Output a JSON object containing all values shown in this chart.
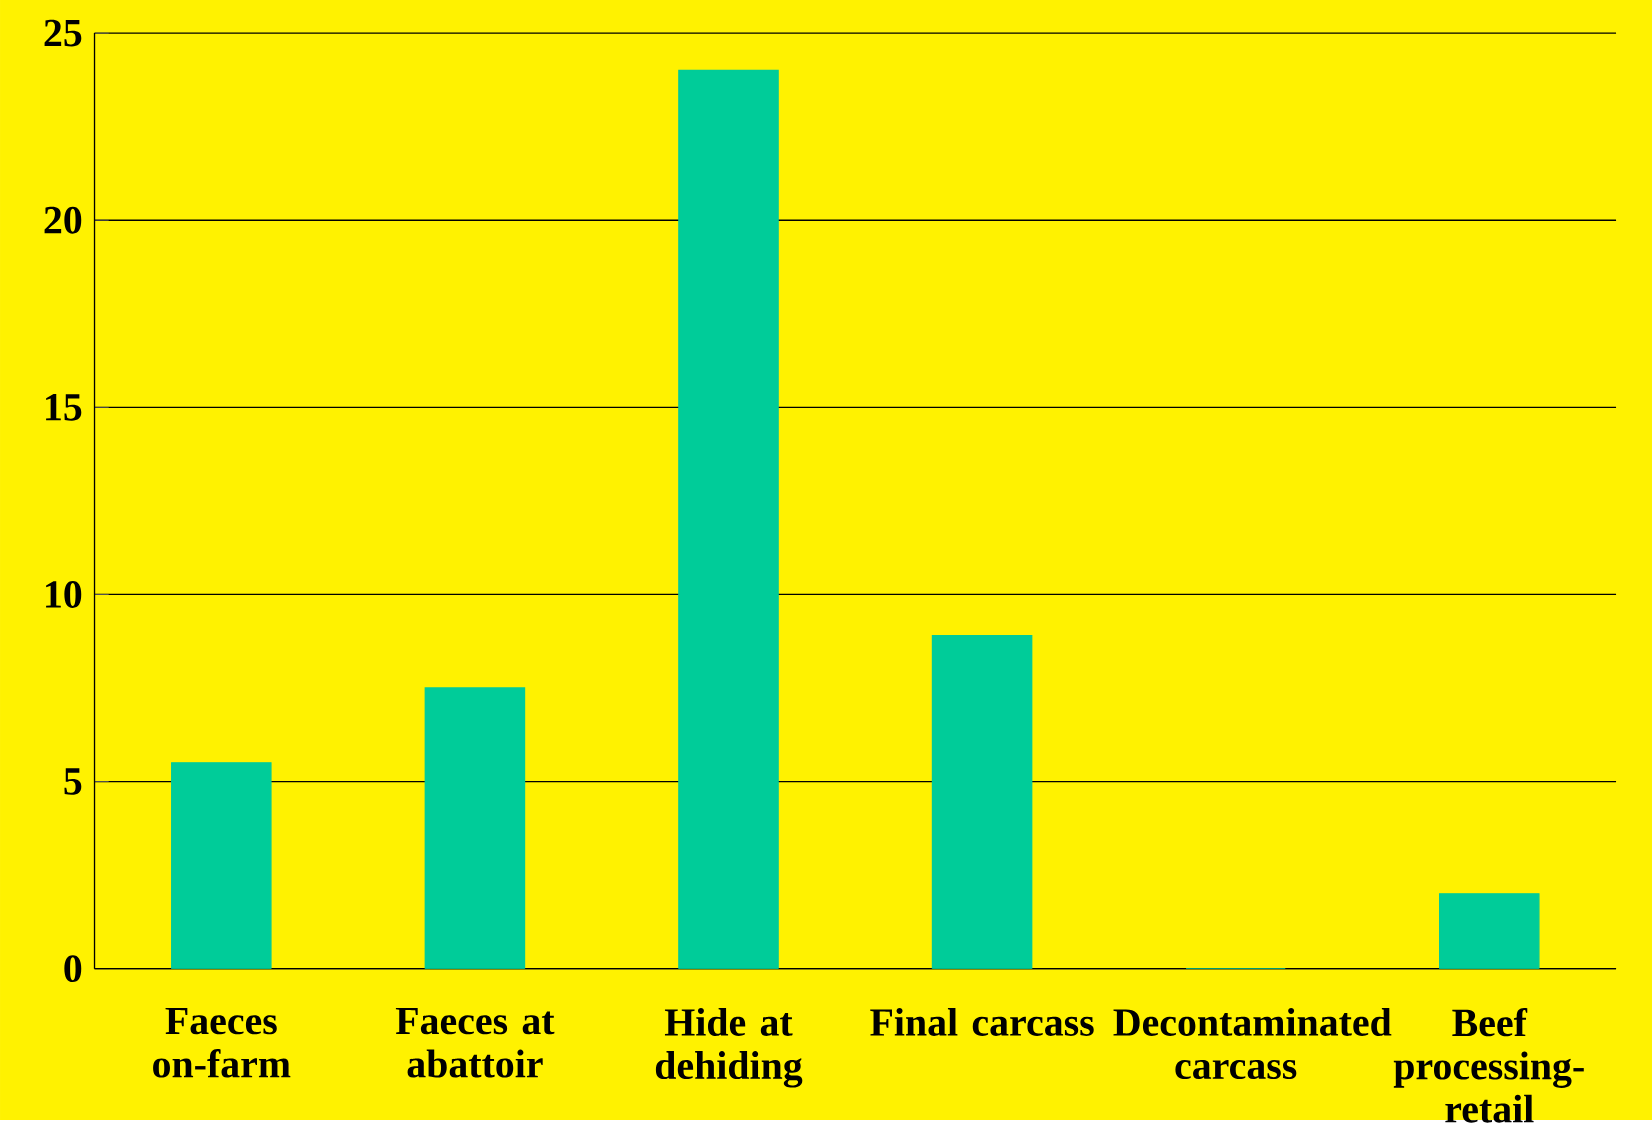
{
  "chart_data": {
    "type": "bar",
    "categories": [
      "Faeces on-farm",
      "Faeces at abattoir",
      "Hide at dehiding",
      "Final carcass",
      "Decontaminated carcass",
      "Beef processing-retail"
    ],
    "values": [
      5.5,
      7.5,
      24,
      8.9,
      0,
      2
    ],
    "color": "#00cc99",
    "ylim": [
      0,
      25
    ],
    "yticks": [
      0,
      5,
      10,
      15,
      20,
      25
    ],
    "grid": "y"
  }
}
